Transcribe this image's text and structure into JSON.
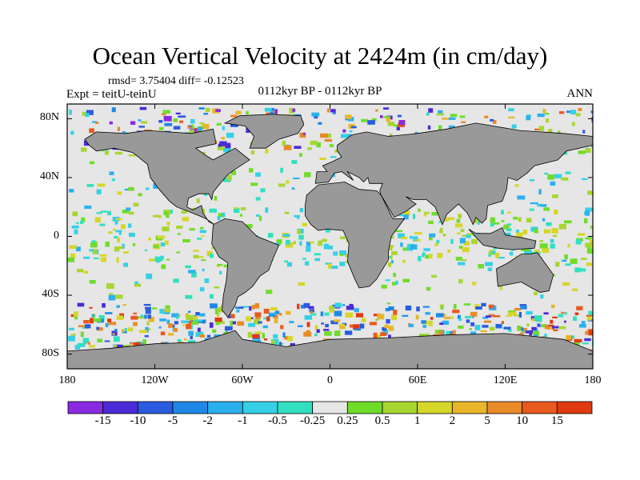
{
  "title": "Ocean Vertical Velocity at 2424m (in cm/day)",
  "stats": "rmsd= 3.75404 diff= -0.12523",
  "experiment": "Expt = teitU-teinU",
  "period": "0112kyr BP - 0112kyr BP",
  "season": "ANN",
  "lat_labels": [
    "80N",
    "40N",
    "0",
    "40S",
    "80S"
  ],
  "lon_labels": [
    "180",
    "120W",
    "60W",
    "0",
    "60E",
    "120E",
    "180"
  ],
  "colorbar": {
    "labels": [
      "-15",
      "-10",
      "-5",
      "-2",
      "-1",
      "-0.5",
      "-0.25",
      "0.25",
      "0.5",
      "1",
      "2",
      "5",
      "10",
      "15"
    ],
    "colors": [
      "#8a2be2",
      "#4b2bd6",
      "#2a5be0",
      "#1f88e6",
      "#2bb0ee",
      "#35d0e6",
      "#30e0c0",
      "#e6e6e6",
      "#6fdc2a",
      "#a8d630",
      "#d6d62a",
      "#e8b628",
      "#e88a28",
      "#e85a1e",
      "#e03a10"
    ]
  },
  "colors": {
    "land": "#999999",
    "ocean_background": "#e6e6e6"
  }
}
